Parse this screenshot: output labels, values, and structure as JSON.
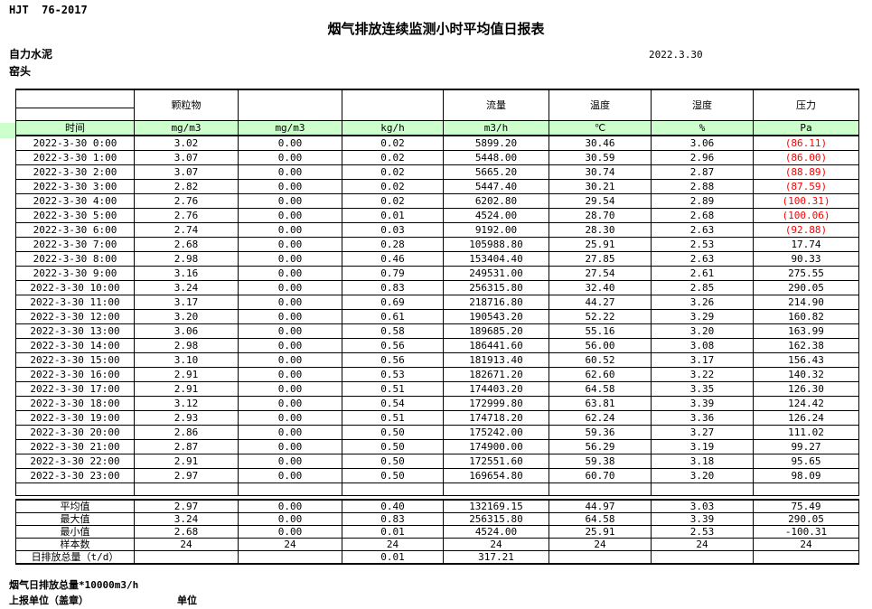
{
  "page": {
    "doc_code": "HJT  76-2017",
    "title": "烟气排放连续监测小时平均值日报表",
    "company": "自力水泥",
    "location": "窑头",
    "date": "2022.3.30"
  },
  "colors": {
    "unit_row_green": "#ccffcc",
    "negative_red": "#ff0000"
  },
  "table": {
    "time_header": "时间",
    "group_headers": {
      "particulate": "颗粒物",
      "flow": "流量",
      "temperature": "温度",
      "humidity": "湿度",
      "pressure": "压力"
    },
    "units": [
      "mg/m3",
      "mg/m3",
      "kg/h",
      "m3/h",
      "℃",
      "%",
      "Pa"
    ],
    "rows": [
      {
        "time": "2022-3-30 0:00",
        "values": [
          "3.02",
          "0.00",
          "0.02",
          "5899.20",
          "30.46",
          "3.06",
          "(86.11)"
        ],
        "negative_pressure": true
      },
      {
        "time": "2022-3-30 1:00",
        "values": [
          "3.07",
          "0.00",
          "0.02",
          "5448.00",
          "30.59",
          "2.96",
          "(86.00)"
        ],
        "negative_pressure": true
      },
      {
        "time": "2022-3-30 2:00",
        "values": [
          "3.07",
          "0.00",
          "0.02",
          "5665.20",
          "30.74",
          "2.87",
          "(88.89)"
        ],
        "negative_pressure": true
      },
      {
        "time": "2022-3-30 3:00",
        "values": [
          "2.82",
          "0.00",
          "0.02",
          "5447.40",
          "30.21",
          "2.88",
          "(87.59)"
        ],
        "negative_pressure": true
      },
      {
        "time": "2022-3-30 4:00",
        "values": [
          "2.76",
          "0.00",
          "0.02",
          "6202.80",
          "29.54",
          "2.89",
          "(100.31)"
        ],
        "negative_pressure": true
      },
      {
        "time": "2022-3-30 5:00",
        "values": [
          "2.76",
          "0.00",
          "0.01",
          "4524.00",
          "28.70",
          "2.68",
          "(100.06)"
        ],
        "negative_pressure": true
      },
      {
        "time": "2022-3-30 6:00",
        "values": [
          "2.74",
          "0.00",
          "0.03",
          "9192.00",
          "28.30",
          "2.63",
          "(92.88)"
        ],
        "negative_pressure": true
      },
      {
        "time": "2022-3-30 7:00",
        "values": [
          "2.68",
          "0.00",
          "0.28",
          "105988.80",
          "25.91",
          "2.53",
          "17.74"
        ],
        "negative_pressure": false
      },
      {
        "time": "2022-3-30 8:00",
        "values": [
          "2.98",
          "0.00",
          "0.46",
          "153404.40",
          "27.85",
          "2.63",
          "90.33"
        ],
        "negative_pressure": false
      },
      {
        "time": "2022-3-30 9:00",
        "values": [
          "3.16",
          "0.00",
          "0.79",
          "249531.00",
          "27.54",
          "2.61",
          "275.55"
        ],
        "negative_pressure": false
      },
      {
        "time": "2022-3-30 10:00",
        "values": [
          "3.24",
          "0.00",
          "0.83",
          "256315.80",
          "32.40",
          "2.85",
          "290.05"
        ],
        "negative_pressure": false
      },
      {
        "time": "2022-3-30 11:00",
        "values": [
          "3.17",
          "0.00",
          "0.69",
          "218716.80",
          "44.27",
          "3.26",
          "214.90"
        ],
        "negative_pressure": false
      },
      {
        "time": "2022-3-30 12:00",
        "values": [
          "3.20",
          "0.00",
          "0.61",
          "190543.20",
          "52.22",
          "3.29",
          "160.82"
        ],
        "negative_pressure": false
      },
      {
        "time": "2022-3-30 13:00",
        "values": [
          "3.06",
          "0.00",
          "0.58",
          "189685.20",
          "55.16",
          "3.20",
          "163.99"
        ],
        "negative_pressure": false
      },
      {
        "time": "2022-3-30 14:00",
        "values": [
          "2.98",
          "0.00",
          "0.56",
          "186441.60",
          "56.00",
          "3.08",
          "162.38"
        ],
        "negative_pressure": false
      },
      {
        "time": "2022-3-30 15:00",
        "values": [
          "3.10",
          "0.00",
          "0.56",
          "181913.40",
          "60.52",
          "3.17",
          "156.43"
        ],
        "negative_pressure": false
      },
      {
        "time": "2022-3-30 16:00",
        "values": [
          "2.91",
          "0.00",
          "0.53",
          "182671.20",
          "62.60",
          "3.22",
          "140.32"
        ],
        "negative_pressure": false
      },
      {
        "time": "2022-3-30 17:00",
        "values": [
          "2.91",
          "0.00",
          "0.51",
          "174403.20",
          "64.58",
          "3.35",
          "126.30"
        ],
        "negative_pressure": false
      },
      {
        "time": "2022-3-30 18:00",
        "values": [
          "3.12",
          "0.00",
          "0.54",
          "172999.80",
          "63.81",
          "3.39",
          "124.42"
        ],
        "negative_pressure": false
      },
      {
        "time": "2022-3-30 19:00",
        "values": [
          "2.93",
          "0.00",
          "0.51",
          "174718.20",
          "62.24",
          "3.36",
          "126.24"
        ],
        "negative_pressure": false
      },
      {
        "time": "2022-3-30 20:00",
        "values": [
          "2.86",
          "0.00",
          "0.50",
          "175242.00",
          "59.36",
          "3.27",
          "111.02"
        ],
        "negative_pressure": false
      },
      {
        "time": "2022-3-30 21:00",
        "values": [
          "2.87",
          "0.00",
          "0.50",
          "174900.00",
          "56.29",
          "3.19",
          "99.27"
        ],
        "negative_pressure": false
      },
      {
        "time": "2022-3-30 22:00",
        "values": [
          "2.91",
          "0.00",
          "0.50",
          "172551.60",
          "59.38",
          "3.18",
          "95.65"
        ],
        "negative_pressure": false
      },
      {
        "time": "2022-3-30 23:00",
        "values": [
          "2.97",
          "0.00",
          "0.50",
          "169654.80",
          "60.70",
          "3.20",
          "98.09"
        ],
        "negative_pressure": false
      }
    ],
    "summary": [
      {
        "label": "平均值",
        "values": [
          "2.97",
          "0.00",
          "0.40",
          "132169.15",
          "44.97",
          "3.03",
          "75.49"
        ]
      },
      {
        "label": "最大值",
        "values": [
          "3.24",
          "0.00",
          "0.83",
          "256315.80",
          "64.58",
          "3.39",
          "290.05"
        ]
      },
      {
        "label": "最小值",
        "values": [
          "2.68",
          "0.00",
          "0.01",
          "4524.00",
          "25.91",
          "2.53",
          "-100.31"
        ]
      },
      {
        "label": "样本数",
        "values": [
          "24",
          "24",
          "24",
          "24",
          "24",
          "24",
          "24"
        ]
      },
      {
        "label": "日排放总量（t/d）",
        "values": [
          "",
          "",
          "0.01",
          "317.21",
          "",
          "",
          ""
        ]
      }
    ]
  },
  "footer": {
    "note": "烟气日排放总量*10000m3/h",
    "report_unit_label": "上报单位（盖章）",
    "unit_label": "单位"
  }
}
